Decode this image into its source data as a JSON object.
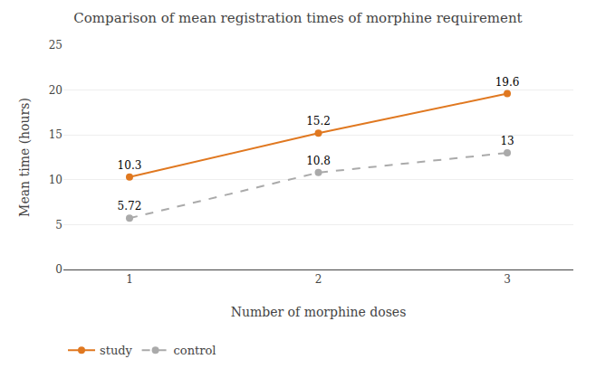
{
  "chart_data": {
    "type": "line",
    "title": "Comparison of mean registration times of morphine requirement",
    "xlabel": "Number of morphine doses",
    "ylabel": "Mean time (hours)",
    "x": [
      1,
      2,
      3
    ],
    "series": [
      {
        "name": "study",
        "color": "#E07820",
        "values": [
          10.3,
          15.2,
          19.6
        ],
        "marker": "circle",
        "line_style": "solid"
      },
      {
        "name": "control",
        "color": "#AAAAAA",
        "values": [
          5.72,
          10.8,
          13
        ],
        "marker": "circle",
        "line_style": "dashed"
      }
    ],
    "xlim": [
      0.65,
      3.35
    ],
    "xticks": [
      1,
      2,
      3
    ],
    "ylim": [
      0,
      25
    ],
    "yticks": [
      0,
      5,
      10,
      15,
      20,
      25
    ],
    "grid": true,
    "legend": "bottom",
    "data_labels": true
  }
}
